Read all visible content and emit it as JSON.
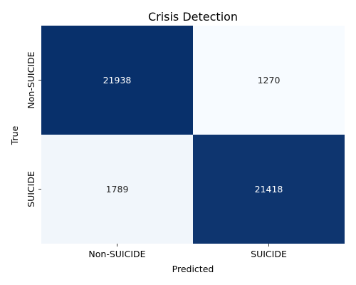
{
  "chart_data": {
    "type": "heatmap",
    "title": "Crisis Detection",
    "xlabel": "Predicted",
    "ylabel": "True",
    "x_categories": [
      "Non-SUICIDE",
      "SUICIDE"
    ],
    "y_categories": [
      "Non-SUICIDE",
      "SUICIDE"
    ],
    "values": [
      [
        21938,
        1270
      ],
      [
        1789,
        21418
      ]
    ],
    "colormap": {
      "low": "#f7fbff",
      "high": "#08306b"
    },
    "text_colors": {
      "on_dark": "#ffffff",
      "on_light": "#262626"
    },
    "colorbar": false,
    "grid": false
  }
}
